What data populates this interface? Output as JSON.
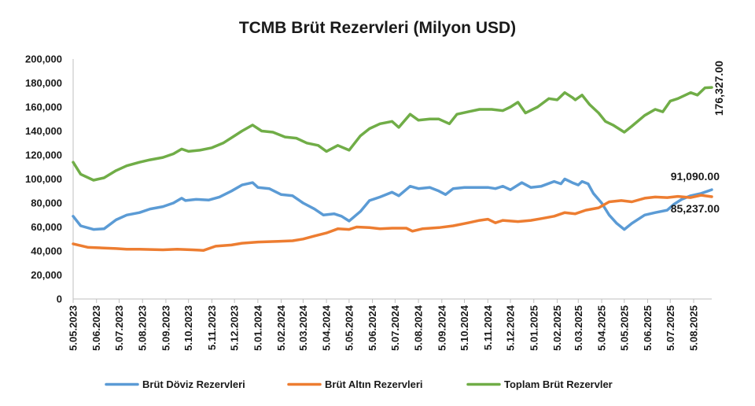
{
  "chart_data": {
    "type": "line",
    "title": "TCMB Brüt Rezervleri (Milyon USD)",
    "xlabel": "",
    "ylabel": "",
    "ylim": [
      0,
      200000
    ],
    "y_ticks": [
      "0",
      "20,000",
      "40,000",
      "60,000",
      "80,000",
      "100,000",
      "120,000",
      "140,000",
      "160,000",
      "180,000",
      "200,000"
    ],
    "x_range": [
      "2023-05-05",
      "2025-08-29"
    ],
    "x_tick_labels": [
      "5.05.2023",
      "5.06.2023",
      "5.07.2023",
      "5.08.2023",
      "5.09.2023",
      "5.10.2023",
      "5.11.2023",
      "5.12.2023",
      "5.01.2024",
      "5.02.2024",
      "5.03.2024",
      "5.04.2024",
      "5.05.2024",
      "5.06.2024",
      "5.07.2024",
      "5.08.2024",
      "5.09.2024",
      "5.10.2024",
      "5.11.2024",
      "5.12.2024",
      "5.01.2025",
      "5.02.2025",
      "5.03.2025",
      "5.04.2025",
      "5.05.2025",
      "5.06.2025",
      "5.07.2025",
      "5.08.2025"
    ],
    "grid": false,
    "legend_position": "bottom",
    "series": [
      {
        "name": "Brüt Döviz Rezervleri",
        "color": "#5b9bd5",
        "points": [
          [
            "2023-05-05",
            69000
          ],
          [
            "2023-05-15",
            61000
          ],
          [
            "2023-06-01",
            58000
          ],
          [
            "2023-06-15",
            58500
          ],
          [
            "2023-07-01",
            66000
          ],
          [
            "2023-07-15",
            70000
          ],
          [
            "2023-08-01",
            72000
          ],
          [
            "2023-08-15",
            75000
          ],
          [
            "2023-09-01",
            77000
          ],
          [
            "2023-09-15",
            80000
          ],
          [
            "2023-09-26",
            84000
          ],
          [
            "2023-10-01",
            82000
          ],
          [
            "2023-10-15",
            83000
          ],
          [
            "2023-11-01",
            82500
          ],
          [
            "2023-11-15",
            85000
          ],
          [
            "2023-12-01",
            90000
          ],
          [
            "2023-12-15",
            95000
          ],
          [
            "2023-12-29",
            97000
          ],
          [
            "2024-01-05",
            93000
          ],
          [
            "2024-01-20",
            92000
          ],
          [
            "2024-02-05",
            87000
          ],
          [
            "2024-02-20",
            86000
          ],
          [
            "2024-03-05",
            80000
          ],
          [
            "2024-03-20",
            75000
          ],
          [
            "2024-04-01",
            70000
          ],
          [
            "2024-04-15",
            71000
          ],
          [
            "2024-04-25",
            69000
          ],
          [
            "2024-05-05",
            65000
          ],
          [
            "2024-05-20",
            73000
          ],
          [
            "2024-06-01",
            82000
          ],
          [
            "2024-06-15",
            85000
          ],
          [
            "2024-07-01",
            89000
          ],
          [
            "2024-07-10",
            86000
          ],
          [
            "2024-07-25",
            94000
          ],
          [
            "2024-08-05",
            92000
          ],
          [
            "2024-08-20",
            93000
          ],
          [
            "2024-09-01",
            90000
          ],
          [
            "2024-09-10",
            87000
          ],
          [
            "2024-09-20",
            92000
          ],
          [
            "2024-10-05",
            93000
          ],
          [
            "2024-10-20",
            93000
          ],
          [
            "2024-11-05",
            93000
          ],
          [
            "2024-11-15",
            92000
          ],
          [
            "2024-11-25",
            94000
          ],
          [
            "2024-12-05",
            91000
          ],
          [
            "2024-12-20",
            97000
          ],
          [
            "2025-01-01",
            93000
          ],
          [
            "2025-01-15",
            94000
          ],
          [
            "2025-02-01",
            98000
          ],
          [
            "2025-02-10",
            96000
          ],
          [
            "2025-02-15",
            100000
          ],
          [
            "2025-02-25",
            97000
          ],
          [
            "2025-03-05",
            95000
          ],
          [
            "2025-03-10",
            98000
          ],
          [
            "2025-03-18",
            96000
          ],
          [
            "2025-03-25",
            88000
          ],
          [
            "2025-04-05",
            80000
          ],
          [
            "2025-04-15",
            70000
          ],
          [
            "2025-04-25",
            63000
          ],
          [
            "2025-05-05",
            58000
          ],
          [
            "2025-05-15",
            63000
          ],
          [
            "2025-06-01",
            70000
          ],
          [
            "2025-06-15",
            72000
          ],
          [
            "2025-07-01",
            74000
          ],
          [
            "2025-07-10",
            79000
          ],
          [
            "2025-07-20",
            83000
          ],
          [
            "2025-08-01",
            86000
          ],
          [
            "2025-08-15",
            88000
          ],
          [
            "2025-08-29",
            91090
          ]
        ]
      },
      {
        "name": "Brüt Altın Rezervleri",
        "color": "#ed7d31",
        "points": [
          [
            "2023-05-05",
            46000
          ],
          [
            "2023-05-25",
            43000
          ],
          [
            "2023-06-15",
            42500
          ],
          [
            "2023-07-01",
            42000
          ],
          [
            "2023-07-15",
            41500
          ],
          [
            "2023-08-01",
            41500
          ],
          [
            "2023-09-01",
            41000
          ],
          [
            "2023-09-20",
            41500
          ],
          [
            "2023-10-10",
            41000
          ],
          [
            "2023-10-25",
            40500
          ],
          [
            "2023-11-10",
            44000
          ],
          [
            "2023-12-01",
            45000
          ],
          [
            "2023-12-15",
            46500
          ],
          [
            "2024-01-05",
            47500
          ],
          [
            "2024-02-01",
            48000
          ],
          [
            "2024-02-20",
            48500
          ],
          [
            "2024-03-05",
            50000
          ],
          [
            "2024-03-20",
            52500
          ],
          [
            "2024-04-05",
            55000
          ],
          [
            "2024-04-20",
            58500
          ],
          [
            "2024-05-05",
            58000
          ],
          [
            "2024-05-15",
            60000
          ],
          [
            "2024-06-01",
            59500
          ],
          [
            "2024-06-15",
            58500
          ],
          [
            "2024-07-01",
            59000
          ],
          [
            "2024-07-20",
            59000
          ],
          [
            "2024-07-28",
            56500
          ],
          [
            "2024-08-10",
            58500
          ],
          [
            "2024-09-01",
            59500
          ],
          [
            "2024-09-20",
            61000
          ],
          [
            "2024-10-10",
            63500
          ],
          [
            "2024-10-25",
            65500
          ],
          [
            "2024-11-05",
            66500
          ],
          [
            "2024-11-15",
            63500
          ],
          [
            "2024-11-25",
            65500
          ],
          [
            "2024-12-15",
            64500
          ],
          [
            "2025-01-01",
            65500
          ],
          [
            "2025-01-15",
            67000
          ],
          [
            "2025-02-01",
            69000
          ],
          [
            "2025-02-15",
            72000
          ],
          [
            "2025-03-01",
            71000
          ],
          [
            "2025-03-15",
            74000
          ],
          [
            "2025-04-01",
            76000
          ],
          [
            "2025-04-15",
            81000
          ],
          [
            "2025-05-01",
            82000
          ],
          [
            "2025-05-15",
            81000
          ],
          [
            "2025-06-01",
            84000
          ],
          [
            "2025-06-15",
            85000
          ],
          [
            "2025-07-01",
            84500
          ],
          [
            "2025-07-15",
            85500
          ],
          [
            "2025-08-01",
            84500
          ],
          [
            "2025-08-15",
            86500
          ],
          [
            "2025-08-29",
            85237
          ]
        ]
      },
      {
        "name": "Toplam Brüt Rezervler",
        "color": "#70ad47",
        "points": [
          [
            "2023-05-05",
            114000
          ],
          [
            "2023-05-15",
            104000
          ],
          [
            "2023-06-01",
            99000
          ],
          [
            "2023-06-15",
            101000
          ],
          [
            "2023-07-01",
            107000
          ],
          [
            "2023-07-15",
            111000
          ],
          [
            "2023-08-01",
            114000
          ],
          [
            "2023-08-15",
            116000
          ],
          [
            "2023-09-01",
            118000
          ],
          [
            "2023-09-15",
            121000
          ],
          [
            "2023-09-26",
            125000
          ],
          [
            "2023-10-05",
            123000
          ],
          [
            "2023-10-20",
            124000
          ],
          [
            "2023-11-05",
            126000
          ],
          [
            "2023-11-20",
            130000
          ],
          [
            "2023-12-05",
            136000
          ],
          [
            "2023-12-15",
            140000
          ],
          [
            "2023-12-29",
            145000
          ],
          [
            "2024-01-10",
            140000
          ],
          [
            "2024-01-25",
            139000
          ],
          [
            "2024-02-10",
            135000
          ],
          [
            "2024-02-25",
            134000
          ],
          [
            "2024-03-10",
            130000
          ],
          [
            "2024-03-25",
            128000
          ],
          [
            "2024-04-05",
            123000
          ],
          [
            "2024-04-20",
            128000
          ],
          [
            "2024-05-05",
            124000
          ],
          [
            "2024-05-20",
            136000
          ],
          [
            "2024-06-01",
            142000
          ],
          [
            "2024-06-15",
            146000
          ],
          [
            "2024-07-01",
            148000
          ],
          [
            "2024-07-10",
            143000
          ],
          [
            "2024-07-25",
            154000
          ],
          [
            "2024-08-05",
            149000
          ],
          [
            "2024-08-20",
            150000
          ],
          [
            "2024-09-01",
            150000
          ],
          [
            "2024-09-15",
            146000
          ],
          [
            "2024-09-25",
            154000
          ],
          [
            "2024-10-10",
            156000
          ],
          [
            "2024-10-25",
            158000
          ],
          [
            "2024-11-10",
            158000
          ],
          [
            "2024-11-25",
            157000
          ],
          [
            "2024-12-05",
            160000
          ],
          [
            "2024-12-15",
            164000
          ],
          [
            "2024-12-25",
            155000
          ],
          [
            "2025-01-10",
            160000
          ],
          [
            "2025-01-25",
            167000
          ],
          [
            "2025-02-05",
            166000
          ],
          [
            "2025-02-15",
            172000
          ],
          [
            "2025-02-25",
            168000
          ],
          [
            "2025-03-01",
            166000
          ],
          [
            "2025-03-10",
            170000
          ],
          [
            "2025-03-20",
            162000
          ],
          [
            "2025-04-01",
            155000
          ],
          [
            "2025-04-10",
            148000
          ],
          [
            "2025-04-20",
            145000
          ],
          [
            "2025-05-05",
            139000
          ],
          [
            "2025-05-15",
            144000
          ],
          [
            "2025-06-01",
            153000
          ],
          [
            "2025-06-15",
            158000
          ],
          [
            "2025-06-25",
            156000
          ],
          [
            "2025-07-05",
            165000
          ],
          [
            "2025-07-15",
            167000
          ],
          [
            "2025-08-01",
            172000
          ],
          [
            "2025-08-10",
            170000
          ],
          [
            "2025-08-20",
            176000
          ],
          [
            "2025-08-29",
            176327
          ]
        ]
      }
    ],
    "data_labels": [
      {
        "text": "176,327.00",
        "series": 2
      },
      {
        "text": "91,090.00",
        "series": 0
      },
      {
        "text": "85,237.00",
        "series": 1
      }
    ]
  }
}
